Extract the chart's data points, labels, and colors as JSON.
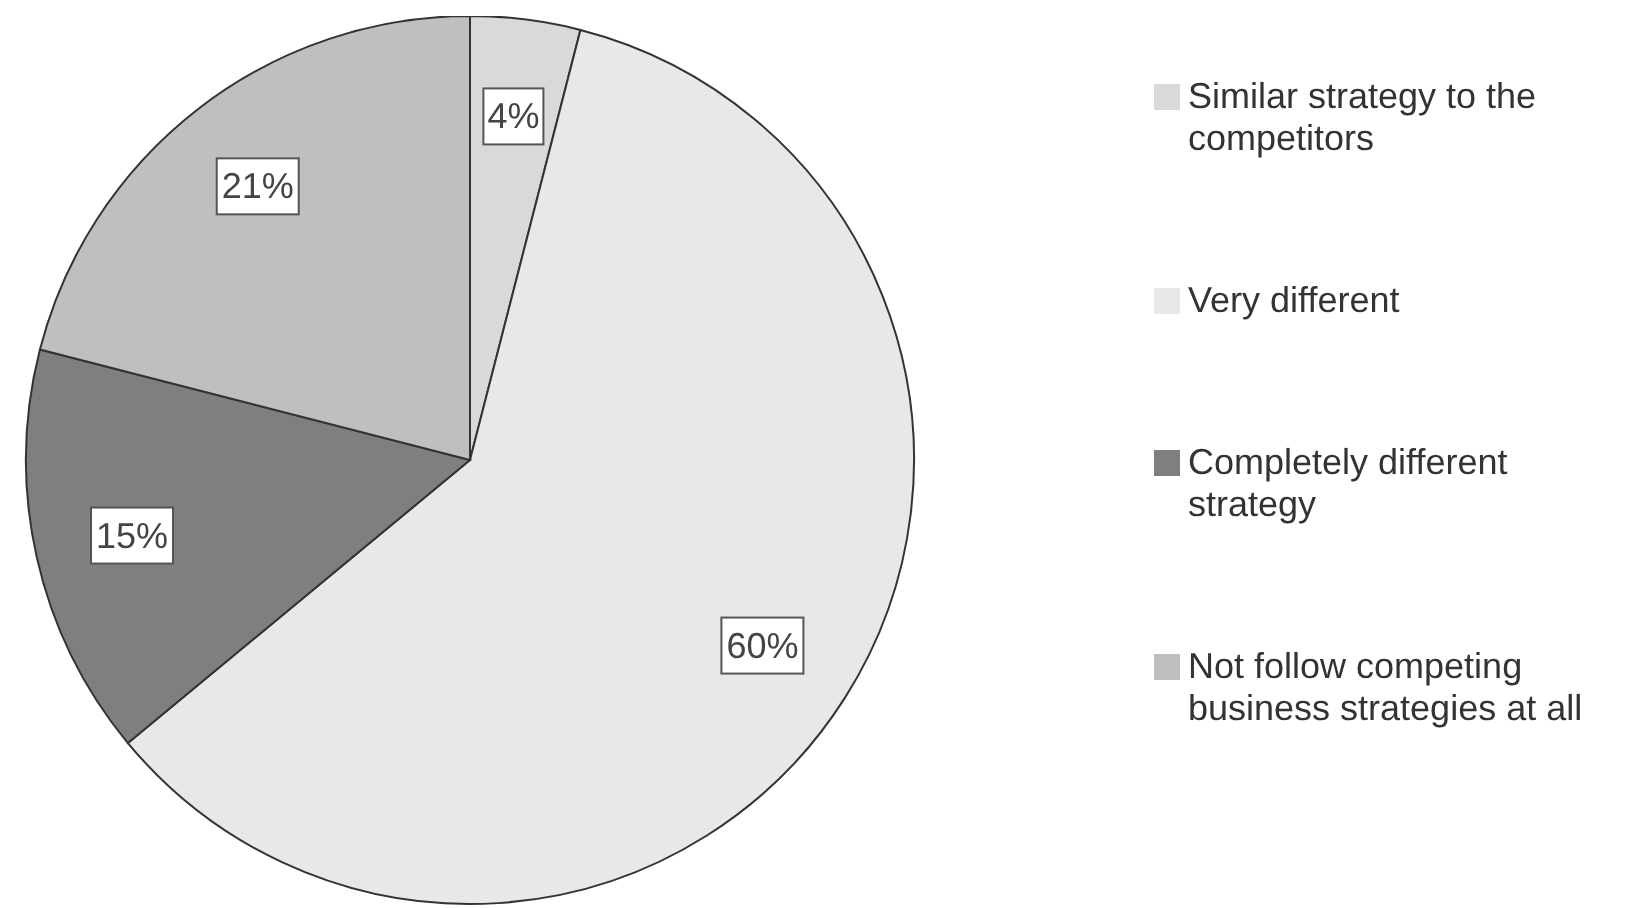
{
  "chart_data": {
    "type": "pie",
    "categories": [
      "Similar strategy to the competitors",
      "Very different",
      "Completely different strategy",
      "Not follow competing business strategies at all"
    ],
    "values": [
      4,
      60,
      15,
      21
    ],
    "value_labels": [
      "4%",
      "60%",
      "15%",
      "21%"
    ],
    "colors": [
      "#d9d9d9",
      "#e8e8e8",
      "#7f7f7f",
      "#bfbfbf"
    ],
    "legend": "right"
  }
}
